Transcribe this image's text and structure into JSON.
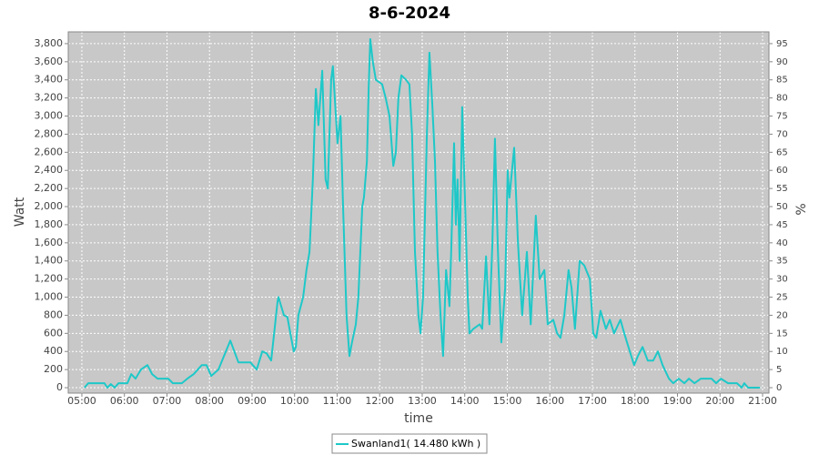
{
  "chart_data": {
    "type": "line",
    "title": "8-6-2024",
    "x_label": "time",
    "y_label": "Watt",
    "y2_label": "%",
    "x": [
      5.06,
      5.15,
      5.53,
      5.6,
      5.68,
      5.77,
      5.86,
      6.07,
      6.16,
      6.26,
      6.39,
      6.54,
      6.65,
      6.78,
      7.03,
      7.14,
      7.35,
      7.48,
      7.63,
      7.82,
      7.93,
      8.04,
      8.21,
      8.49,
      8.68,
      8.96,
      9.11,
      9.24,
      9.34,
      9.45,
      9.6,
      9.62,
      9.75,
      9.83,
      9.92,
      9.98,
      10.03,
      10.09,
      10.2,
      10.28,
      10.35,
      10.43,
      10.5,
      10.56,
      10.65,
      10.73,
      10.78,
      10.86,
      10.9,
      10.97,
      11.01,
      11.08,
      11.14,
      11.22,
      11.29,
      11.35,
      11.44,
      11.5,
      11.59,
      11.63,
      11.7,
      11.74,
      11.78,
      11.84,
      11.91,
      12.06,
      12.14,
      12.23,
      12.32,
      12.38,
      12.44,
      12.51,
      12.62,
      12.7,
      12.76,
      12.83,
      12.91,
      12.96,
      13.02,
      13.11,
      13.17,
      13.24,
      13.3,
      13.36,
      13.43,
      13.49,
      13.56,
      13.64,
      13.68,
      13.75,
      13.79,
      13.83,
      13.88,
      13.94,
      14.01,
      14.07,
      14.11,
      14.2,
      14.35,
      14.41,
      14.5,
      14.58,
      14.65,
      14.71,
      14.78,
      14.86,
      14.95,
      15.01,
      15.05,
      15.16,
      15.25,
      15.35,
      15.46,
      15.55,
      15.67,
      15.76,
      15.87,
      15.95,
      16.08,
      16.17,
      16.25,
      16.34,
      16.44,
      16.51,
      16.59,
      16.7,
      16.81,
      16.94,
      17.02,
      17.09,
      17.19,
      17.32,
      17.41,
      17.51,
      17.66,
      17.75,
      17.88,
      17.98,
      18.07,
      18.18,
      18.3,
      18.43,
      18.54,
      18.65,
      18.8,
      18.9,
      19.03,
      19.16,
      19.27,
      19.4,
      19.55,
      19.8,
      19.91,
      20.02,
      20.19,
      20.4,
      20.51,
      20.57,
      20.66,
      20.94
    ],
    "series": [
      {
        "name": "Swanland1( 14.480 kWh )",
        "color": "#1ec8c8",
        "values": [
          0,
          50,
          50,
          0,
          40,
          0,
          50,
          50,
          150,
          100,
          200,
          250,
          150,
          100,
          100,
          50,
          50,
          100,
          150,
          250,
          250,
          130,
          200,
          520,
          280,
          280,
          200,
          400,
          380,
          300,
          950,
          1000,
          800,
          780,
          550,
          400,
          450,
          800,
          1000,
          1300,
          1500,
          2300,
          3300,
          2900,
          3500,
          2300,
          2200,
          3400,
          3550,
          3000,
          2700,
          3000,
          2000,
          800,
          350,
          500,
          700,
          1000,
          2000,
          2100,
          2500,
          3300,
          3850,
          3600,
          3400,
          3350,
          3200,
          3000,
          2450,
          2600,
          3200,
          3450,
          3400,
          3350,
          2800,
          1500,
          800,
          600,
          1000,
          2800,
          3700,
          3100,
          2500,
          1500,
          800,
          350,
          1300,
          900,
          1500,
          2700,
          1800,
          2300,
          1400,
          3100,
          2000,
          1000,
          600,
          650,
          700,
          650,
          1450,
          700,
          1600,
          2750,
          1500,
          500,
          1100,
          2400,
          2100,
          2650,
          1600,
          800,
          1500,
          700,
          1900,
          1200,
          1300,
          700,
          750,
          600,
          550,
          800,
          1300,
          1100,
          650,
          1400,
          1350,
          1200,
          600,
          550,
          850,
          650,
          750,
          600,
          750,
          600,
          400,
          250,
          350,
          450,
          300,
          300,
          400,
          250,
          100,
          50,
          100,
          50,
          100,
          50,
          100,
          100,
          50,
          100,
          50,
          50,
          0,
          50,
          0,
          0
        ]
      }
    ],
    "xlim": [
      4.68,
      21.15
    ],
    "xticks": [
      {
        "value": 5,
        "label": "05:00"
      },
      {
        "value": 6,
        "label": "06:00"
      },
      {
        "value": 7,
        "label": "07:00"
      },
      {
        "value": 8,
        "label": "08:00"
      },
      {
        "value": 9,
        "label": "09:00"
      },
      {
        "value": 10,
        "label": "10:00"
      },
      {
        "value": 11,
        "label": "11:00"
      },
      {
        "value": 12,
        "label": "12:00"
      },
      {
        "value": 13,
        "label": "13:00"
      },
      {
        "value": 14,
        "label": "14:00"
      },
      {
        "value": 15,
        "label": "15:00"
      },
      {
        "value": 16,
        "label": "16:00"
      },
      {
        "value": 17,
        "label": "17:00"
      },
      {
        "value": 18,
        "label": "18:00"
      },
      {
        "value": 19,
        "label": "19:00"
      },
      {
        "value": 20,
        "label": "20:00"
      },
      {
        "value": 21,
        "label": "21:00"
      }
    ],
    "ylim": [
      -60,
      3930
    ],
    "yticks": [
      0,
      200,
      400,
      600,
      800,
      {
        "value": 1000,
        "label": "1,000"
      },
      {
        "value": 1200,
        "label": "1,200"
      },
      {
        "value": 1400,
        "label": "1,400"
      },
      {
        "value": 1600,
        "label": "1,600"
      },
      {
        "value": 1800,
        "label": "1,800"
      },
      {
        "value": 2000,
        "label": "2,000"
      },
      {
        "value": 2200,
        "label": "2,200"
      },
      {
        "value": 2400,
        "label": "2,400"
      },
      {
        "value": 2600,
        "label": "2,600"
      },
      {
        "value": 2800,
        "label": "2,800"
      },
      {
        "value": 3000,
        "label": "3,000"
      },
      {
        "value": 3200,
        "label": "3,200"
      },
      {
        "value": 3400,
        "label": "3,400"
      },
      {
        "value": 3600,
        "label": "3,600"
      },
      {
        "value": 3800,
        "label": "3,800"
      }
    ],
    "y2lim": [
      -1.5,
      98.25
    ],
    "y2ticks": [
      0,
      5,
      10,
      15,
      20,
      25,
      30,
      35,
      40,
      45,
      50,
      55,
      60,
      65,
      70,
      75,
      80,
      85,
      90,
      95
    ],
    "grid": true
  }
}
